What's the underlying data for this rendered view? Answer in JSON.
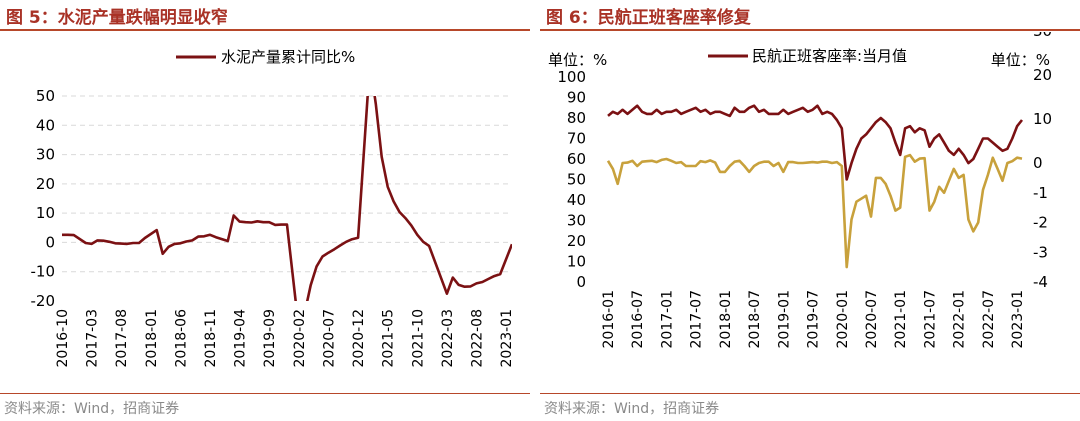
{
  "panels": {
    "left": {
      "figure_title": "图 5：水泥产量跌幅明显收窄",
      "source": "资料来源：Wind，招商证券"
    },
    "right": {
      "figure_title": "图 6：民航正班客座率修复",
      "source": "资料来源：Wind，招商证券"
    }
  },
  "chart_data": [
    {
      "type": "line",
      "title": "",
      "series": [
        {
          "name": "水泥产量累计同比%",
          "color": "#7b1113",
          "x": [
            "2016-10",
            "2016-11",
            "2016-12",
            "2017-02",
            "2017-03",
            "2017-04",
            "2017-05",
            "2017-06",
            "2017-07",
            "2017-08",
            "2017-09",
            "2017-10",
            "2017-11",
            "2017-12",
            "2018-02",
            "2018-03",
            "2018-04",
            "2018-05",
            "2018-06",
            "2018-07",
            "2018-08",
            "2018-09",
            "2018-10",
            "2018-11",
            "2018-12",
            "2019-02",
            "2019-03",
            "2019-04",
            "2019-05",
            "2019-06",
            "2019-07",
            "2019-08",
            "2019-09",
            "2019-10",
            "2019-11",
            "2019-12",
            "2020-02",
            "2020-03",
            "2020-04",
            "2020-05",
            "2020-06",
            "2020-07",
            "2020-08",
            "2020-09",
            "2020-10",
            "2020-11",
            "2020-12",
            "2021-02",
            "2021-03",
            "2021-04",
            "2021-05",
            "2021-06",
            "2021-07",
            "2021-08",
            "2021-09",
            "2021-10",
            "2021-11",
            "2021-12",
            "2022-02",
            "2022-03",
            "2022-04",
            "2022-05",
            "2022-06",
            "2022-07",
            "2022-08",
            "2022-09",
            "2022-10",
            "2022-11",
            "2022-12",
            "2023-02"
          ],
          "values": [
            2.6,
            2.6,
            2.5,
            -0.2,
            -0.5,
            0.7,
            0.6,
            0.2,
            -0.3,
            -0.4,
            -0.5,
            -0.2,
            -0.2,
            1.5,
            4.2,
            -3.9,
            -1.5,
            -0.5,
            -0.3,
            0.3,
            0.7,
            2.0,
            2.1,
            2.6,
            1.8,
            0.5,
            9.2,
            7.1,
            6.9,
            6.8,
            7.2,
            6.9,
            6.9,
            6.0,
            6.1,
            6.1,
            -29.5,
            -23.9,
            -14.6,
            -8.2,
            -4.8,
            -3.5,
            -2.3,
            -1.0,
            0.2,
            1.1,
            1.6,
            61.4,
            47.3,
            29.2,
            19.0,
            14.0,
            10.4,
            8.3,
            5.8,
            2.6,
            0.2,
            -1.2,
            -12.0,
            -17.5,
            -12.0,
            -14.5,
            -15.1,
            -15.0,
            -14.0,
            -13.5,
            -12.5,
            -11.5,
            -10.8,
            -0.6
          ]
        }
      ],
      "xlabels": [
        "2016-10",
        "2017-03",
        "2017-08",
        "2018-01",
        "2018-06",
        "2018-11",
        "2019-04",
        "2019-09",
        "2020-02",
        "2020-07",
        "2020-12",
        "2021-05",
        "2021-10",
        "2022-03",
        "2022-08",
        "2023-01"
      ],
      "yticks": [
        -20,
        -10,
        0,
        10,
        20,
        30,
        40,
        50
      ],
      "ylim": [
        -20,
        50
      ],
      "grid": true,
      "legend": "top"
    },
    {
      "type": "line",
      "title": "",
      "left_unit": "单位：%",
      "right_unit": "单位：%",
      "series": [
        {
          "name": "民航正班客座率:当月值",
          "axis": "left",
          "color": "#7b1113",
          "x": [
            "2016-01",
            "2016-02",
            "2016-03",
            "2016-04",
            "2016-05",
            "2016-06",
            "2016-07",
            "2016-08",
            "2016-09",
            "2016-10",
            "2016-11",
            "2016-12",
            "2017-01",
            "2017-02",
            "2017-03",
            "2017-04",
            "2017-05",
            "2017-06",
            "2017-07",
            "2017-08",
            "2017-09",
            "2017-10",
            "2017-11",
            "2017-12",
            "2018-01",
            "2018-02",
            "2018-03",
            "2018-04",
            "2018-05",
            "2018-06",
            "2018-07",
            "2018-08",
            "2018-09",
            "2018-10",
            "2018-11",
            "2018-12",
            "2019-01",
            "2019-02",
            "2019-03",
            "2019-04",
            "2019-05",
            "2019-06",
            "2019-07",
            "2019-08",
            "2019-09",
            "2019-10",
            "2019-11",
            "2019-12",
            "2020-01",
            "2020-02",
            "2020-03",
            "2020-04",
            "2020-05",
            "2020-06",
            "2020-07",
            "2020-08",
            "2020-09",
            "2020-10",
            "2020-11",
            "2020-12",
            "2021-01",
            "2021-02",
            "2021-03",
            "2021-04",
            "2021-05",
            "2021-06",
            "2021-07",
            "2021-08",
            "2021-09",
            "2021-10",
            "2021-11",
            "2021-12",
            "2022-01",
            "2022-02",
            "2022-03",
            "2022-04",
            "2022-05",
            "2022-06",
            "2022-07",
            "2022-08",
            "2022-09",
            "2022-10",
            "2022-11",
            "2022-12",
            "2023-01",
            "2023-02"
          ],
          "values": [
            81,
            83,
            82,
            84,
            82,
            84,
            86,
            83,
            82,
            82,
            84,
            82,
            83,
            83,
            84,
            82,
            83,
            84,
            85,
            83,
            84,
            82,
            83,
            83,
            82,
            81,
            85,
            83,
            83,
            85,
            86,
            83,
            84,
            82,
            82,
            82,
            84,
            82,
            83,
            84,
            85,
            83,
            84,
            86,
            82,
            83,
            82,
            79,
            75,
            50,
            58,
            65,
            70,
            72,
            75,
            78,
            80,
            78,
            75,
            68,
            62,
            75,
            76,
            73,
            75,
            74,
            66,
            70,
            72,
            68,
            64,
            62,
            65,
            62,
            58,
            60,
            65,
            70,
            70,
            68,
            66,
            64,
            65,
            70,
            76,
            79
          ]
        },
        {
          "name": "",
          "axis": "right",
          "color": "#c8a13c",
          "x": [
            "2016-01",
            "2016-02",
            "2016-03",
            "2016-04",
            "2016-05",
            "2016-06",
            "2016-07",
            "2016-08",
            "2016-09",
            "2016-10",
            "2016-11",
            "2016-12",
            "2017-01",
            "2017-02",
            "2017-03",
            "2017-04",
            "2017-05",
            "2017-06",
            "2017-07",
            "2017-08",
            "2017-09",
            "2017-10",
            "2017-11",
            "2017-12",
            "2018-01",
            "2018-02",
            "2018-03",
            "2018-04",
            "2018-05",
            "2018-06",
            "2018-07",
            "2018-08",
            "2018-09",
            "2018-10",
            "2018-11",
            "2018-12",
            "2019-01",
            "2019-02",
            "2019-03",
            "2019-04",
            "2019-05",
            "2019-06",
            "2019-07",
            "2019-08",
            "2019-09",
            "2019-10",
            "2019-11",
            "2019-12",
            "2020-01",
            "2020-02",
            "2020-03",
            "2020-04",
            "2020-05",
            "2020-06",
            "2020-07",
            "2020-08",
            "2020-09",
            "2020-10",
            "2020-11",
            "2020-12",
            "2021-01",
            "2021-02",
            "2021-03",
            "2021-04",
            "2021-05",
            "2021-06",
            "2021-07",
            "2021-08",
            "2021-09",
            "2021-10",
            "2021-11",
            "2021-12",
            "2022-01",
            "2022-02",
            "2022-03",
            "2022-04",
            "2022-05",
            "2022-06",
            "2022-07",
            "2022-08",
            "2022-09",
            "2022-10",
            "2022-11",
            "2022-12",
            "2023-01",
            "2023-02"
          ],
          "values": [
            0.5,
            -0.2,
            -0.7,
            0.0,
            0.1,
            0.5,
            -0.1,
            0.3,
            0.4,
            0.5,
            0.2,
            0.7,
            0.9,
            0.5,
            0.0,
            0.2,
            -0.1,
            -0.1,
            -0.1,
            0.4,
            0.2,
            0.6,
            0.1,
            -0.3,
            -0.3,
            -0.1,
            0.3,
            0.5,
            -0.1,
            -0.3,
            -0.1,
            0.0,
            0.3,
            0.3,
            -0.1,
            0.0,
            -0.3,
            0.2,
            0.2,
            0.0,
            0.0,
            0.1,
            0.2,
            0.1,
            0.3,
            0.3,
            0.0,
            0.2,
            -0.1,
            -3.5,
            -1.9,
            -1.3,
            -1.2,
            -1.1,
            -1.8,
            -0.5,
            -0.5,
            -0.7,
            -1.1,
            -1.6,
            -1.5,
            1.4,
            1.8,
            0.3,
            1.0,
            1.1,
            -1.6,
            -1.3,
            -0.8,
            -1.0,
            -0.6,
            -0.2,
            -0.5,
            -0.4,
            -1.9,
            -2.3,
            -2.0,
            -0.9,
            -0.4,
            1.2,
            -0.2,
            -0.6,
            0.0,
            0.4,
            1.2,
            1.0
          ]
        }
      ],
      "xlabels": [
        "2016-01",
        "2016-07",
        "2017-01",
        "2017-07",
        "2018-01",
        "2018-07",
        "2019-01",
        "2019-07",
        "2020-01",
        "2020-07",
        "2021-01",
        "2021-07",
        "2022-01",
        "2022-07",
        "2023-01"
      ],
      "yticks_left": [
        0,
        10,
        20,
        30,
        40,
        50,
        60,
        70,
        80,
        90,
        100
      ],
      "yticks_right": [
        -4,
        -3,
        -2,
        -1,
        0,
        10,
        20,
        30
      ],
      "ylim_left": [
        0,
        100
      ],
      "grid": false,
      "legend": "top"
    }
  ]
}
